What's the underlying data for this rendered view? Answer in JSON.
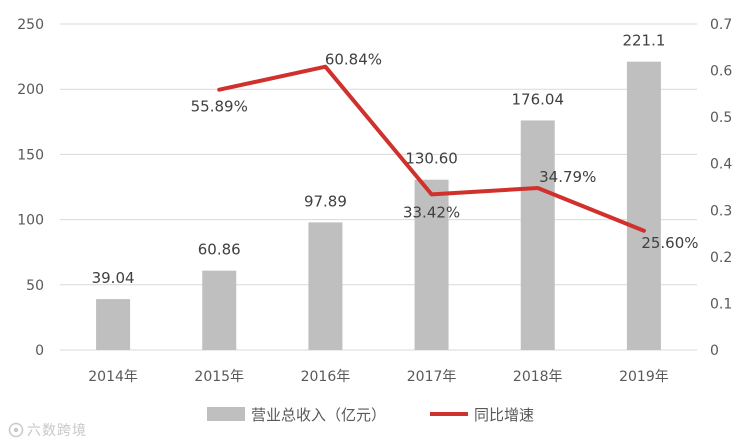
{
  "chart_data": {
    "type": "bar",
    "categories": [
      "2014年",
      "2015年",
      "2016年",
      "2017年",
      "2018年",
      "2019年"
    ],
    "series": [
      {
        "name": "营业总收入（亿元）",
        "type": "bar",
        "axis": "left",
        "values": [
          39.04,
          60.86,
          97.89,
          130.6,
          176.04,
          221.1
        ],
        "labels": [
          "39.04",
          "60.86",
          "97.89",
          "130.60",
          "176.04",
          "221.1"
        ],
        "color": "#bfbfbf"
      },
      {
        "name": "同比增速",
        "type": "line",
        "axis": "right",
        "values": [
          null,
          0.5589,
          0.6084,
          0.3342,
          0.3479,
          0.256
        ],
        "labels": [
          "",
          "55.89%",
          "60.84%",
          "33.42%",
          "34.79%",
          "25.60%"
        ],
        "color": "#d0312d"
      }
    ],
    "y_left": {
      "ylim": [
        0,
        250
      ],
      "ticks": [
        "0",
        "50",
        "100",
        "150",
        "200",
        "250"
      ]
    },
    "y_right": {
      "ylim": [
        0,
        0.7
      ],
      "ticks": [
        "0",
        "0.1",
        "0.2",
        "0.3",
        "0.4",
        "0.5",
        "0.6",
        "0.7"
      ]
    },
    "grid": true,
    "legend_position": "bottom"
  },
  "watermark": {
    "text": "六数跨境"
  }
}
